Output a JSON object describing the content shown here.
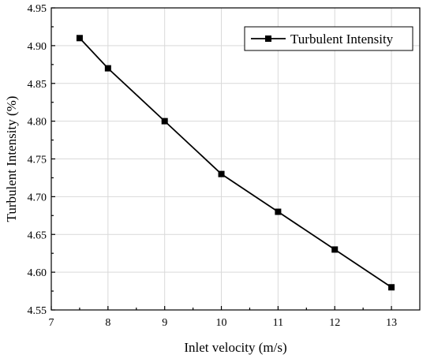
{
  "chart_data": {
    "type": "line",
    "title": "",
    "xlabel": "Inlet velocity (m/s)",
    "ylabel": "Turbulent Intensity (%)",
    "xlim": [
      7,
      13.5
    ],
    "ylim": [
      4.55,
      4.95
    ],
    "x_ticks": [
      7,
      8,
      9,
      10,
      11,
      12,
      13
    ],
    "y_ticks": [
      4.55,
      4.6,
      4.65,
      4.7,
      4.75,
      4.8,
      4.85,
      4.9,
      4.95
    ],
    "x_tick_labels": [
      "7",
      "8",
      "9",
      "10",
      "11",
      "12",
      "13"
    ],
    "y_tick_labels": [
      "4.55",
      "4.60",
      "4.65",
      "4.70",
      "4.75",
      "4.80",
      "4.85",
      "4.90",
      "4.95"
    ],
    "grid": true,
    "legend_position": "top-right",
    "series": [
      {
        "name": "Turbulent Intensity",
        "marker": "square",
        "color": "#000000",
        "x": [
          7.5,
          8,
          9,
          10,
          11,
          12,
          13
        ],
        "y": [
          4.91,
          4.87,
          4.8,
          4.73,
          4.68,
          4.63,
          4.58
        ]
      }
    ]
  }
}
